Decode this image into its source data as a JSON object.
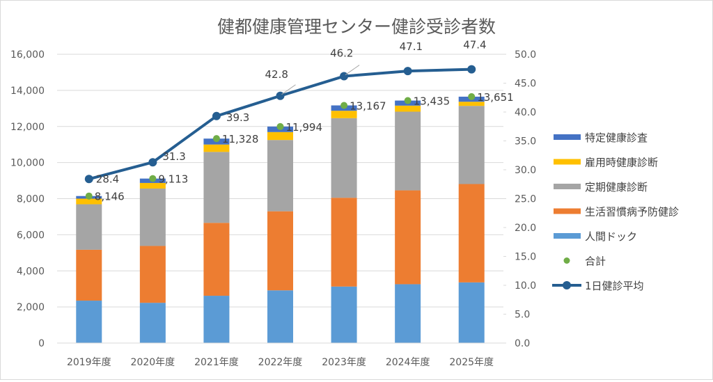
{
  "chart_data": {
    "type": "bar",
    "subtype": "stacked-bar-with-line",
    "title": "健都健康管理センター健診受診者数",
    "categories": [
      "2019年度",
      "2020年度",
      "2021年度",
      "2022年度",
      "2023年度",
      "2024年度",
      "2025年度"
    ],
    "series": [
      {
        "name": "人間ドック",
        "type": "bar",
        "axis": "left",
        "color": "#5b9bd5",
        "values": [
          2350,
          2230,
          2620,
          2920,
          3130,
          3260,
          3360
        ]
      },
      {
        "name": "生活習慣病予防健診",
        "type": "bar",
        "axis": "left",
        "color": "#ed7d31",
        "values": [
          2820,
          3150,
          4040,
          4380,
          4920,
          5200,
          5450
        ]
      },
      {
        "name": "定期健康診断",
        "type": "bar",
        "axis": "left",
        "color": "#a5a5a5",
        "values": [
          2520,
          3180,
          3930,
          3950,
          4410,
          4360,
          4330
        ]
      },
      {
        "name": "雇用時健康診断",
        "type": "bar",
        "axis": "left",
        "color": "#ffc000",
        "values": [
          310,
          310,
          410,
          440,
          410,
          335,
          230
        ]
      },
      {
        "name": "特定健康診査",
        "type": "bar",
        "axis": "left",
        "color": "#4472c4",
        "values": [
          146,
          243,
          328,
          304,
          297,
          280,
          281
        ]
      },
      {
        "name": "合計",
        "type": "scatter",
        "axis": "left",
        "color": "#70ad47",
        "values": [
          8146,
          9113,
          11328,
          11994,
          13167,
          13435,
          13651
        ],
        "labels": [
          "8,146",
          "9,113",
          "11,328",
          "11,994",
          "13,167",
          "13,435",
          "13,651"
        ]
      },
      {
        "name": "1日健診平均",
        "type": "line",
        "axis": "right",
        "color": "#255e91",
        "values": [
          28.4,
          31.3,
          39.3,
          42.8,
          46.2,
          47.1,
          47.4
        ],
        "labels": [
          "28.4",
          "31.3",
          "39.3",
          "42.8",
          "46.2",
          "47.1",
          "47.4"
        ]
      }
    ],
    "legend_order": [
      "特定健康診査",
      "雇用時健康診断",
      "定期健康診断",
      "生活習慣病予防健診",
      "人間ドック",
      "合計",
      "1日健診平均"
    ],
    "y_left": {
      "min": 0,
      "max": 16000,
      "step": 2000,
      "tick_labels": [
        "0",
        "2,000",
        "4,000",
        "6,000",
        "8,000",
        "10,000",
        "12,000",
        "14,000",
        "16,000"
      ]
    },
    "y_right": {
      "min": 0,
      "max": 50,
      "step": 5,
      "tick_labels": [
        "0.0",
        "5.0",
        "10.0",
        "15.0",
        "20.0",
        "25.0",
        "30.0",
        "35.0",
        "40.0",
        "45.0",
        "50.0"
      ]
    },
    "xlabel": "",
    "ylabel": "",
    "grid": true,
    "legend_position": "right"
  }
}
